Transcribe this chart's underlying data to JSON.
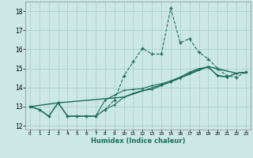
{
  "xlabel": "Humidex (Indice chaleur)",
  "xlim": [
    -0.5,
    23.5
  ],
  "ylim": [
    11.8,
    18.5
  ],
  "yticks": [
    12,
    13,
    14,
    15,
    16,
    17,
    18
  ],
  "xticks": [
    0,
    1,
    2,
    3,
    4,
    5,
    6,
    7,
    8,
    9,
    10,
    11,
    12,
    13,
    14,
    15,
    16,
    17,
    18,
    19,
    20,
    21,
    22,
    23
  ],
  "bg_color": "#cce8e4",
  "grid_color": "#aacfcb",
  "line_color": "#1a6b5a",
  "line1_x": [
    0,
    1,
    2,
    3,
    4,
    5,
    6,
    7,
    8,
    9,
    10,
    11,
    12,
    13,
    14,
    15,
    16,
    17,
    18,
    19,
    20,
    21,
    22,
    23
  ],
  "line1_y": [
    13.0,
    12.85,
    12.5,
    13.2,
    12.5,
    12.5,
    12.5,
    12.5,
    12.85,
    13.35,
    14.6,
    15.35,
    16.05,
    15.75,
    15.75,
    18.15,
    16.35,
    16.55,
    15.85,
    15.5,
    15.0,
    14.6,
    14.55,
    14.8
  ],
  "line2_x": [
    0,
    1,
    2,
    3,
    4,
    5,
    6,
    7,
    8,
    9,
    10,
    11,
    12,
    13,
    14,
    15,
    16,
    17,
    18,
    19,
    20,
    21,
    22,
    23
  ],
  "line2_y": [
    13.0,
    12.85,
    12.5,
    13.2,
    12.5,
    12.5,
    12.5,
    12.5,
    12.85,
    13.1,
    13.5,
    13.7,
    13.85,
    13.9,
    14.1,
    14.3,
    14.5,
    14.75,
    14.95,
    15.1,
    14.6,
    14.55,
    14.75,
    14.8
  ],
  "line3_x": [
    0,
    1,
    2,
    3,
    4,
    5,
    6,
    7,
    8,
    9,
    10,
    11,
    12,
    13,
    14,
    15,
    16,
    17,
    18,
    19,
    20,
    21,
    22,
    23
  ],
  "line3_y": [
    13.0,
    12.85,
    12.5,
    13.2,
    12.5,
    12.5,
    12.5,
    12.5,
    13.35,
    13.6,
    13.85,
    13.9,
    13.95,
    14.1,
    14.2,
    14.35,
    14.55,
    14.8,
    15.0,
    15.05,
    14.65,
    14.55,
    14.75,
    14.8
  ],
  "line4_x": [
    0,
    3,
    10,
    15,
    19,
    22,
    23
  ],
  "line4_y": [
    13.0,
    13.2,
    13.5,
    14.3,
    15.1,
    14.75,
    14.8
  ]
}
